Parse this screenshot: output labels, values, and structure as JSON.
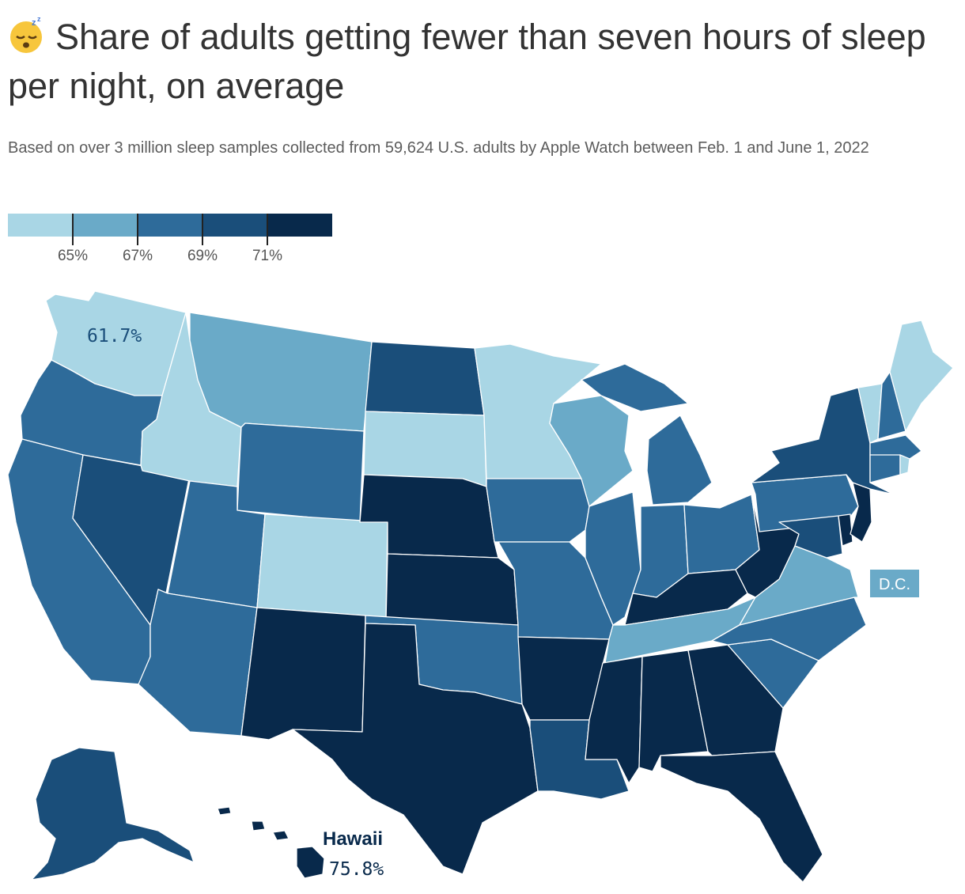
{
  "header": {
    "emoji_icon": "sleeping-face-icon",
    "title": "Share of adults getting fewer than seven hours of sleep per night, on average",
    "subtitle": "Based on over 3 million sleep samples collected from 59,624 U.S. adults by Apple Watch between Feb. 1 and June 1, 2022"
  },
  "legend": {
    "colors": [
      "#a9d6e5",
      "#6aaac8",
      "#2e6b9a",
      "#1a4e7a",
      "#08294b"
    ],
    "ticks": [
      "65%",
      "67%",
      "69%",
      "71%"
    ]
  },
  "map_data": {
    "bins": [
      {
        "range": "< 65%",
        "color": "#a9d6e5"
      },
      {
        "range": "65% - 67%",
        "color": "#6aaac8"
      },
      {
        "range": "67% - 69%",
        "color": "#2e6b9a"
      },
      {
        "range": "69% - 71%",
        "color": "#1a4e7a"
      },
      {
        "range": "> 71%",
        "color": "#08294b"
      }
    ],
    "states": {
      "WA": 0,
      "OR": 2,
      "CA": 2,
      "NV": 3,
      "ID": 0,
      "MT": 1,
      "WY": 2,
      "UT": 2,
      "AZ": 2,
      "CO": 0,
      "NM": 4,
      "ND": 3,
      "SD": 0,
      "NE": 4,
      "KS": 4,
      "OK": 2,
      "TX": 4,
      "MN": 0,
      "IA": 2,
      "MO": 2,
      "AR": 4,
      "LA": 3,
      "WI": 1,
      "IL": 2,
      "MI": 2,
      "IN": 2,
      "OH": 2,
      "KY": 4,
      "TN": 1,
      "MS": 4,
      "AL": 4,
      "GA": 4,
      "FL": 4,
      "SC": 2,
      "NC": 2,
      "VA": 1,
      "WV": 4,
      "PA": 2,
      "NY": 3,
      "VT": 0,
      "NH": 2,
      "ME": 0,
      "MA": 2,
      "CT": 2,
      "RI": 0,
      "NJ": 4,
      "DE": 4,
      "MD": 3,
      "DC": 1,
      "AK": 3,
      "HI": 4
    }
  },
  "annotations": {
    "washington_value": "61.7%",
    "dc_label": "D.C.",
    "hawaii_label": "Hawaii",
    "hawaii_value": "75.8%"
  }
}
